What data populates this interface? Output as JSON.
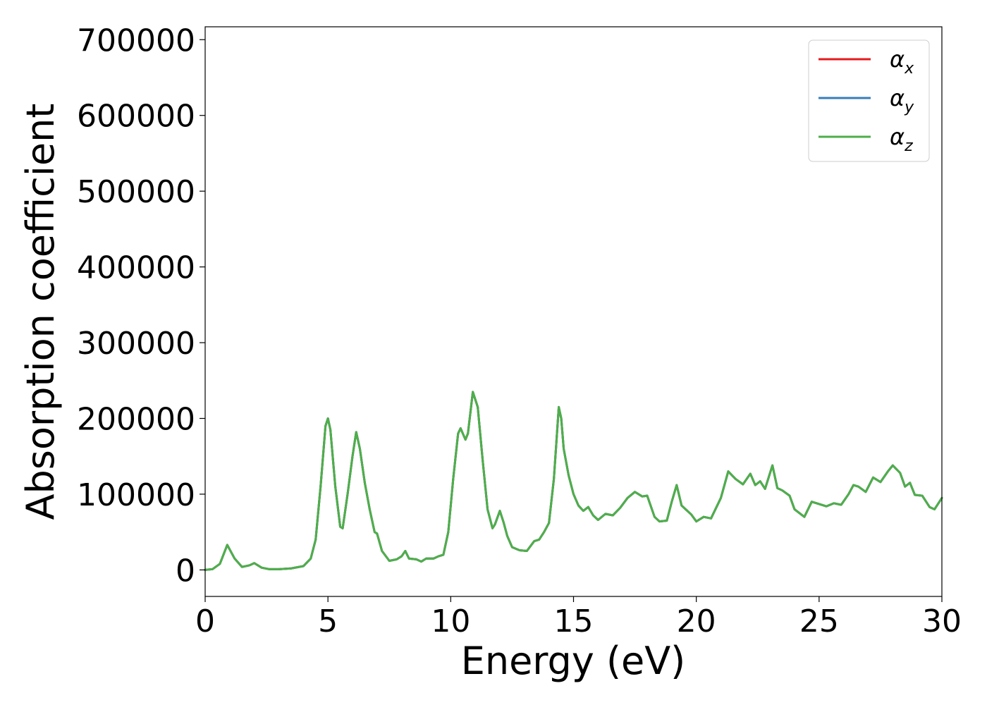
{
  "chart_data": {
    "type": "line",
    "title": "",
    "xlabel": "Energy (eV)",
    "ylabel": "Absorption coefficient",
    "xlim": [
      0,
      30
    ],
    "ylim": [
      -35000,
      717000
    ],
    "x_ticks": [
      0,
      5,
      10,
      15,
      20,
      25,
      30
    ],
    "y_ticks": [
      0,
      100000,
      200000,
      300000,
      400000,
      500000,
      600000,
      700000
    ],
    "grid": false,
    "legend_position": "top-right",
    "series": [
      {
        "name": "α_x",
        "symbol": "α",
        "subscript": "x",
        "color": "#e41a1c",
        "points": [
          [
            0,
            0
          ],
          [
            0.3,
            1000
          ],
          [
            0.6,
            8000
          ],
          [
            0.9,
            33000
          ],
          [
            1.2,
            15000
          ],
          [
            1.5,
            4000
          ],
          [
            1.8,
            6000
          ],
          [
            2.0,
            9000
          ],
          [
            2.3,
            3000
          ],
          [
            2.6,
            1000
          ],
          [
            3.0,
            1000
          ],
          [
            3.5,
            2000
          ],
          [
            4.0,
            5000
          ],
          [
            4.3,
            15000
          ],
          [
            4.5,
            40000
          ],
          [
            4.7,
            110000
          ],
          [
            4.9,
            190000
          ],
          [
            5.0,
            200000
          ],
          [
            5.1,
            185000
          ],
          [
            5.3,
            110000
          ],
          [
            5.5,
            57000
          ],
          [
            5.6,
            55000
          ],
          [
            5.8,
            100000
          ],
          [
            6.0,
            150000
          ],
          [
            6.15,
            182000
          ],
          [
            6.3,
            160000
          ],
          [
            6.5,
            115000
          ],
          [
            6.7,
            80000
          ],
          [
            6.9,
            50000
          ],
          [
            7.0,
            48000
          ],
          [
            7.2,
            25000
          ],
          [
            7.5,
            12000
          ],
          [
            7.8,
            14000
          ],
          [
            8.0,
            18000
          ],
          [
            8.15,
            25000
          ],
          [
            8.3,
            15000
          ],
          [
            8.6,
            14000
          ],
          [
            8.8,
            11000
          ],
          [
            9.0,
            15000
          ],
          [
            9.3,
            15000
          ],
          [
            9.5,
            18000
          ],
          [
            9.7,
            20000
          ],
          [
            9.9,
            50000
          ],
          [
            10.1,
            120000
          ],
          [
            10.3,
            180000
          ],
          [
            10.4,
            187000
          ],
          [
            10.6,
            172000
          ],
          [
            10.7,
            180000
          ],
          [
            10.9,
            235000
          ],
          [
            11.1,
            215000
          ],
          [
            11.3,
            145000
          ],
          [
            11.5,
            80000
          ],
          [
            11.7,
            55000
          ],
          [
            11.8,
            60000
          ],
          [
            12.0,
            78000
          ],
          [
            12.15,
            63000
          ],
          [
            12.3,
            45000
          ],
          [
            12.5,
            30000
          ],
          [
            12.8,
            26000
          ],
          [
            13.1,
            25000
          ],
          [
            13.4,
            38000
          ],
          [
            13.6,
            40000
          ],
          [
            13.8,
            50000
          ],
          [
            14.0,
            62000
          ],
          [
            14.2,
            120000
          ],
          [
            14.4,
            215000
          ],
          [
            14.5,
            200000
          ],
          [
            14.6,
            160000
          ],
          [
            14.8,
            125000
          ],
          [
            15.0,
            100000
          ],
          [
            15.2,
            85000
          ],
          [
            15.4,
            78000
          ],
          [
            15.6,
            83000
          ],
          [
            15.8,
            72000
          ],
          [
            16.0,
            66000
          ],
          [
            16.3,
            74000
          ],
          [
            16.6,
            72000
          ],
          [
            16.9,
            82000
          ],
          [
            17.2,
            95000
          ],
          [
            17.5,
            103000
          ],
          [
            17.8,
            97000
          ],
          [
            18.0,
            98000
          ],
          [
            18.3,
            70000
          ],
          [
            18.5,
            64000
          ],
          [
            18.8,
            65000
          ],
          [
            19.0,
            90000
          ],
          [
            19.2,
            112000
          ],
          [
            19.4,
            85000
          ],
          [
            19.6,
            79000
          ],
          [
            19.8,
            73000
          ],
          [
            20.0,
            64000
          ],
          [
            20.3,
            70000
          ],
          [
            20.6,
            68000
          ],
          [
            21.0,
            95000
          ],
          [
            21.3,
            130000
          ],
          [
            21.6,
            120000
          ],
          [
            21.9,
            113000
          ],
          [
            22.2,
            127000
          ],
          [
            22.4,
            112000
          ],
          [
            22.6,
            117000
          ],
          [
            22.8,
            107000
          ],
          [
            23.1,
            138000
          ],
          [
            23.3,
            108000
          ],
          [
            23.5,
            105000
          ],
          [
            23.8,
            98000
          ],
          [
            24.0,
            80000
          ],
          [
            24.2,
            75000
          ],
          [
            24.4,
            70000
          ],
          [
            24.7,
            90000
          ],
          [
            25.0,
            87000
          ],
          [
            25.3,
            84000
          ],
          [
            25.6,
            88000
          ],
          [
            25.9,
            86000
          ],
          [
            26.2,
            100000
          ],
          [
            26.4,
            112000
          ],
          [
            26.6,
            110000
          ],
          [
            26.9,
            103000
          ],
          [
            27.2,
            122000
          ],
          [
            27.5,
            116000
          ],
          [
            27.8,
            130000
          ],
          [
            28.0,
            138000
          ],
          [
            28.3,
            128000
          ],
          [
            28.5,
            110000
          ],
          [
            28.7,
            115000
          ],
          [
            28.9,
            99000
          ],
          [
            29.2,
            98000
          ],
          [
            29.5,
            83000
          ],
          [
            29.7,
            80000
          ],
          [
            30.0,
            95000
          ]
        ]
      },
      {
        "name": "α_y",
        "symbol": "α",
        "subscript": "y",
        "color": "#377eb8",
        "same_as": "α_x"
      },
      {
        "name": "α_z",
        "symbol": "α",
        "subscript": "z",
        "color": "#4daf4a",
        "same_as": "α_x"
      }
    ]
  }
}
